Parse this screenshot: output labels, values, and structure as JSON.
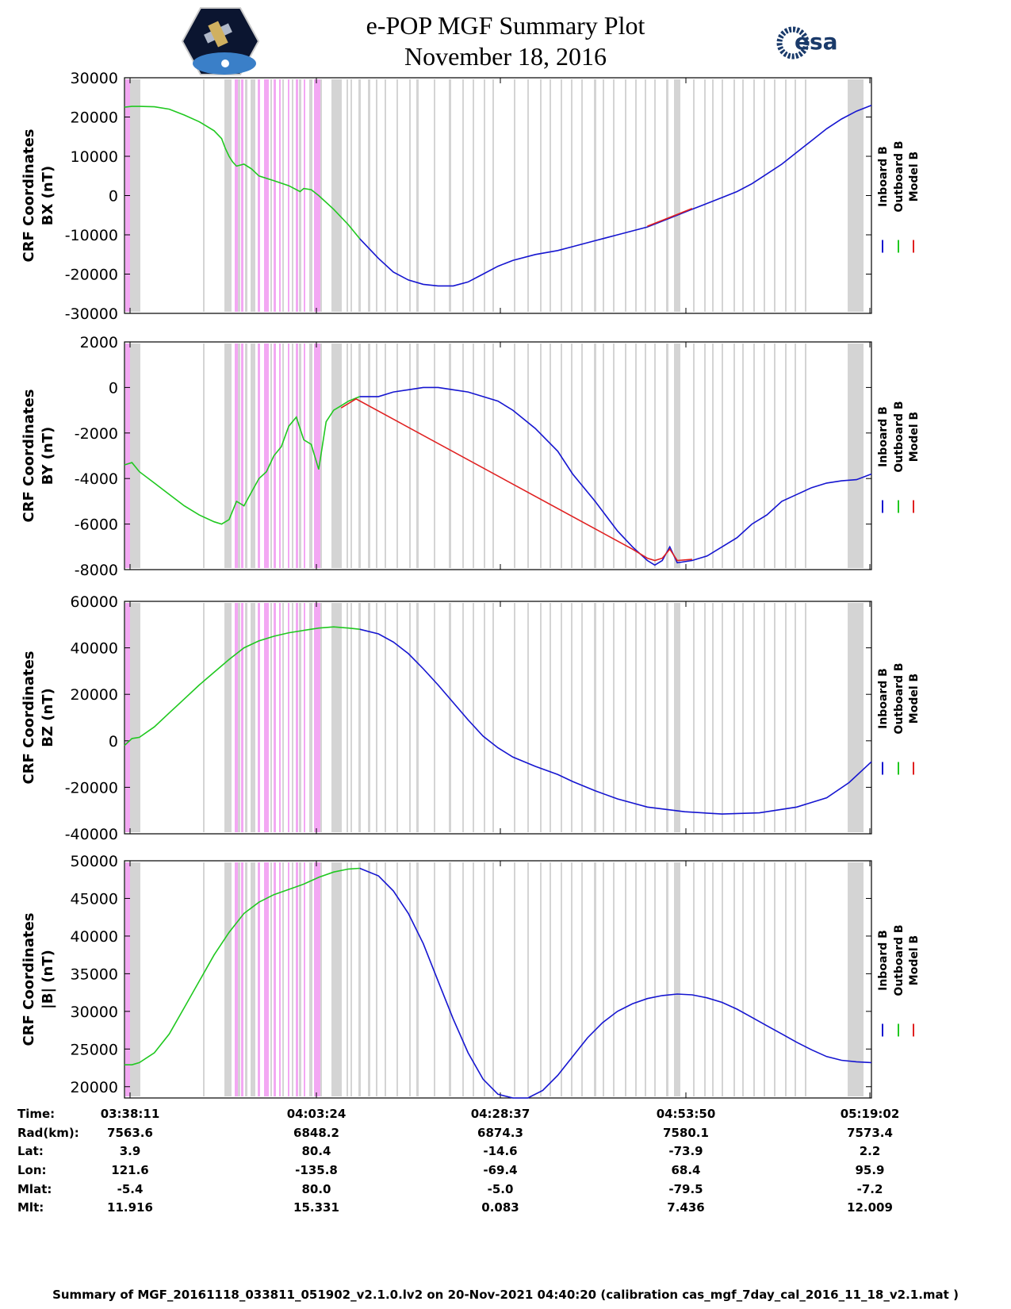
{
  "title": "e-POP MGF Summary Plot",
  "date": "November 18, 2016",
  "logos": {
    "left": "CASSIOPE satellite mission patch",
    "right_text": "esa"
  },
  "legend": {
    "labels": [
      "Inboard B",
      "Outboard B",
      "Model B"
    ],
    "colors": [
      "#1515d0",
      "#20c820",
      "#e02020"
    ]
  },
  "colors": {
    "inboard": "#1515d0",
    "outboard": "#20c820",
    "model": "#e02020",
    "gray_band": "#d4d4d4",
    "magenta_band": "#f3a8f3"
  },
  "chart_data": [
    {
      "type": "line",
      "ylabel": [
        "CRF Coordinates",
        "BX (nT)"
      ],
      "ylim": [
        -30000,
        30000
      ],
      "yticks": [
        30000,
        20000,
        10000,
        0,
        -10000,
        -20000,
        -30000
      ],
      "xlim": [
        0,
        100
      ],
      "xtick_labels": [
        "03:38:11",
        "04:03:24",
        "04:28:37",
        "04:53:50",
        "05:19:02"
      ],
      "series": [
        {
          "name": "Outboard B",
          "x": [
            0,
            1,
            2,
            4,
            6,
            8,
            10,
            12,
            13,
            13.5,
            14,
            14.5,
            15,
            16,
            17,
            18,
            20,
            22,
            23.5,
            24,
            25,
            26,
            28,
            30,
            31.5
          ],
          "y": [
            22500,
            22700,
            22700,
            22600,
            22000,
            20500,
            18800,
            16500,
            14500,
            12000,
            10000,
            8500,
            7500,
            8000,
            6800,
            5000,
            3800,
            2500,
            1000,
            1800,
            1500,
            0,
            -3500,
            -7500,
            -11000
          ]
        },
        {
          "name": "Inboard B",
          "x": [
            31.5,
            34,
            36,
            38,
            40,
            42,
            44,
            46,
            48,
            50,
            52,
            55,
            58,
            60,
            63,
            66,
            70,
            72,
            74,
            76,
            78,
            80,
            82,
            84,
            86,
            88,
            90,
            92,
            94,
            96,
            98,
            100
          ],
          "y": [
            -11000,
            -16000,
            -19500,
            -21500,
            -22600,
            -23000,
            -23000,
            -22000,
            -20000,
            -18000,
            -16500,
            -15000,
            -14000,
            -13000,
            -11500,
            -10000,
            -8000,
            -6500,
            -5000,
            -3500,
            -2000,
            -500,
            1000,
            3000,
            5500,
            8000,
            11000,
            14000,
            17000,
            19500,
            21500,
            23000
          ]
        },
        {
          "name": "Model B",
          "x": [
            70,
            72,
            74,
            76
          ],
          "y": [
            -7800,
            -6300,
            -4800,
            -3300
          ]
        }
      ]
    },
    {
      "type": "line",
      "ylabel": [
        "CRF Coordinates",
        "BY (nT)"
      ],
      "ylim": [
        -8000,
        2000
      ],
      "yticks": [
        2000,
        0,
        -2000,
        -4000,
        -6000,
        -8000
      ],
      "xlim": [
        0,
        100
      ],
      "xtick_labels": [
        "03:38:11",
        "04:03:24",
        "04:28:37",
        "04:53:50",
        "05:19:02"
      ],
      "series": [
        {
          "name": "Outboard B",
          "x": [
            0,
            1,
            2,
            4,
            6,
            8,
            10,
            12,
            13,
            14,
            15,
            16,
            17,
            18,
            19,
            20,
            21,
            22,
            23,
            24,
            25,
            26,
            27,
            28,
            29,
            30,
            31.5
          ],
          "y": [
            -3400,
            -3300,
            -3700,
            -4200,
            -4700,
            -5200,
            -5600,
            -5900,
            -6000,
            -5800,
            -5000,
            -5200,
            -4600,
            -4000,
            -3700,
            -3000,
            -2600,
            -1700,
            -1300,
            -2300,
            -2500,
            -3600,
            -1500,
            -1000,
            -800,
            -600,
            -400
          ]
        },
        {
          "name": "Inboard B",
          "x": [
            31.5,
            34,
            36,
            38,
            40,
            42,
            44,
            46,
            48,
            50,
            52,
            55,
            58,
            60,
            63,
            66,
            68,
            70,
            71,
            72,
            73,
            74,
            76,
            78,
            80,
            82,
            84,
            86,
            88,
            90,
            92,
            94,
            96,
            98,
            100
          ],
          "y": [
            -400,
            -400,
            -200,
            -100,
            0,
            0,
            -100,
            -200,
            -400,
            -600,
            -1000,
            -1800,
            -2800,
            -3800,
            -5000,
            -6300,
            -7000,
            -7600,
            -7800,
            -7600,
            -7000,
            -7700,
            -7600,
            -7400,
            -7000,
            -6600,
            -6000,
            -5600,
            -5000,
            -4700,
            -4400,
            -4200,
            -4100,
            -4050,
            -3800
          ]
        },
        {
          "name": "Model B",
          "x": [
            29,
            30,
            31,
            68,
            70,
            71,
            72,
            73,
            74,
            76
          ],
          "y": [
            -900,
            -700,
            -500,
            -7100,
            -7500,
            -7600,
            -7500,
            -7100,
            -7600,
            -7550
          ]
        }
      ]
    },
    {
      "type": "line",
      "ylabel": [
        "CRF Coordinates",
        "BZ (nT)"
      ],
      "ylim": [
        -40000,
        60000
      ],
      "yticks": [
        60000,
        40000,
        20000,
        0,
        -20000,
        -40000
      ],
      "xlim": [
        0,
        100
      ],
      "xtick_labels": [
        "03:38:11",
        "04:03:24",
        "04:28:37",
        "04:53:50",
        "05:19:02"
      ],
      "series": [
        {
          "name": "Outboard B",
          "x": [
            0,
            1,
            2,
            4,
            6,
            8,
            10,
            12,
            14,
            16,
            18,
            20,
            22,
            24,
            26,
            28,
            30,
            31.5
          ],
          "y": [
            -2000,
            1000,
            1500,
            6000,
            12000,
            18000,
            24000,
            29500,
            35000,
            40000,
            43000,
            45000,
            46500,
            47500,
            48500,
            49000,
            48500,
            48000
          ]
        },
        {
          "name": "Inboard B",
          "x": [
            31.5,
            34,
            36,
            38,
            40,
            42,
            44,
            46,
            48,
            50,
            52,
            55,
            58,
            60,
            63,
            66,
            70,
            75,
            80,
            85,
            90,
            94,
            97,
            100
          ],
          "y": [
            48000,
            46000,
            42500,
            37500,
            31000,
            24000,
            16500,
            9000,
            2000,
            -3000,
            -7000,
            -11000,
            -14500,
            -17500,
            -21500,
            -25000,
            -28500,
            -30500,
            -31500,
            -31000,
            -28500,
            -24500,
            -18000,
            -9000
          ]
        },
        {
          "name": "Model B",
          "x": [],
          "y": []
        }
      ]
    },
    {
      "type": "line",
      "ylabel": [
        "CRF Coordinates",
        "|B| (nT)"
      ],
      "ylim": [
        18500,
        50000
      ],
      "yticks": [
        50000,
        45000,
        40000,
        35000,
        30000,
        25000,
        20000
      ],
      "xlim": [
        0,
        100
      ],
      "xtick_labels": [
        "03:38:11",
        "04:03:24",
        "04:28:37",
        "04:53:50",
        "05:19:02"
      ],
      "series": [
        {
          "name": "Outboard B",
          "x": [
            0,
            1,
            2,
            4,
            6,
            8,
            10,
            12,
            14,
            16,
            18,
            20,
            22,
            24,
            26,
            28,
            30,
            31.5
          ],
          "y": [
            22900,
            22900,
            23200,
            24500,
            27000,
            30500,
            34000,
            37500,
            40500,
            43000,
            44500,
            45500,
            46200,
            46900,
            47800,
            48500,
            48900,
            49000
          ]
        },
        {
          "name": "Inboard B",
          "x": [
            31.5,
            34,
            36,
            38,
            40,
            42,
            44,
            46,
            48,
            50,
            52,
            54,
            56,
            58,
            60,
            62,
            64,
            66,
            68,
            70,
            72,
            74,
            76,
            78,
            80,
            82,
            84,
            86,
            88,
            90,
            92,
            94,
            96,
            98,
            100
          ],
          "y": [
            49000,
            48000,
            46000,
            43000,
            39000,
            34000,
            29000,
            24500,
            21000,
            19000,
            18500,
            18500,
            19500,
            21500,
            24000,
            26500,
            28500,
            30000,
            31000,
            31700,
            32100,
            32300,
            32200,
            31800,
            31200,
            30300,
            29200,
            28100,
            27000,
            25900,
            24900,
            24000,
            23500,
            23300,
            23200
          ]
        },
        {
          "name": "Model B",
          "x": [],
          "y": []
        }
      ]
    }
  ],
  "info_table": {
    "labels": [
      "Time:",
      "Rad(km):",
      "Lat:",
      "Lon:",
      "Mlat:",
      "Mlt:"
    ],
    "columns": [
      [
        "03:38:11",
        "7563.6",
        "3.9",
        "121.6",
        "-5.4",
        "11.916"
      ],
      [
        "04:03:24",
        "6848.2",
        "80.4",
        "-135.8",
        "80.0",
        "15.331"
      ],
      [
        "04:28:37",
        "6874.3",
        "-14.6",
        "-69.4",
        "-5.0",
        "0.083"
      ],
      [
        "04:53:50",
        "7580.1",
        "-73.9",
        "68.4",
        "-79.5",
        "7.436"
      ],
      [
        "05:19:02",
        "7573.4",
        "2.2",
        "95.9",
        "-7.2",
        "12.009"
      ]
    ]
  },
  "footer": "Summary of MGF_20161118_033811_051902_v2.1.0.lv2 on 20-Nov-2021 04:40:20 (calibration cas_mgf_7day_cal_2016_11_18_v2.1.mat )"
}
